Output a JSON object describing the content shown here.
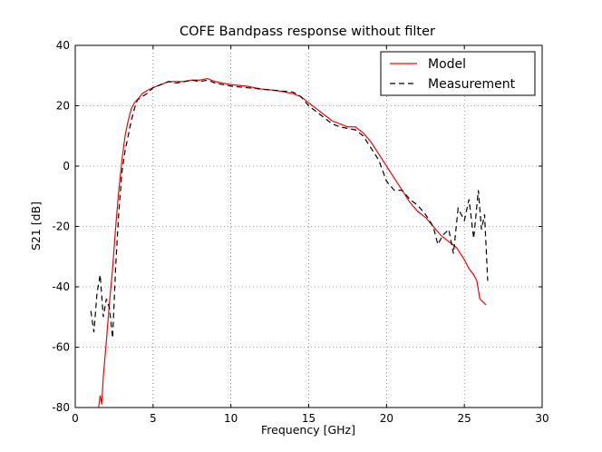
{
  "chart_data": {
    "type": "line",
    "title": "COFE Bandpass response without filter",
    "xlabel": "Frequency [GHz]",
    "ylabel": "S21 [dB]",
    "xlim": [
      0,
      30
    ],
    "ylim": [
      -80,
      40
    ],
    "xticks": [
      0,
      5,
      10,
      15,
      20,
      25,
      30
    ],
    "yticks": [
      -80,
      -60,
      -40,
      -20,
      0,
      20,
      40
    ],
    "grid": true,
    "legend_position": "top-right",
    "series": [
      {
        "name": "Model",
        "color": "#ff0000",
        "style": "solid",
        "x": [
          1.5,
          1.6,
          1.7,
          1.8,
          1.9,
          2.0,
          2.2,
          2.4,
          2.6,
          2.8,
          3.0,
          3.2,
          3.4,
          3.6,
          3.8,
          4.0,
          4.3,
          4.6,
          5.0,
          5.5,
          6.0,
          6.5,
          7.0,
          7.5,
          8.0,
          8.5,
          9.0,
          9.5,
          10.0,
          11.0,
          12.0,
          13.0,
          14.0,
          14.5,
          15.0,
          15.5,
          16.0,
          16.5,
          17.0,
          17.5,
          18.0,
          18.5,
          19.0,
          19.5,
          20.0,
          20.5,
          21.0,
          21.5,
          22.0,
          22.5,
          23.0,
          23.5,
          24.0,
          24.5,
          25.0,
          25.3,
          25.6,
          25.8,
          26.0,
          26.2,
          26.4
        ],
        "y": [
          -80,
          -76,
          -79,
          -70,
          -64,
          -58,
          -45,
          -34,
          -20,
          -8,
          2,
          10,
          15,
          19,
          21,
          22,
          24,
          25,
          26,
          27,
          28,
          28,
          28,
          28.5,
          28.5,
          29,
          28,
          27.5,
          27,
          26.5,
          25.5,
          25,
          24,
          23,
          21,
          19,
          17,
          15,
          14,
          13,
          13,
          11,
          8,
          4,
          0,
          -4,
          -8,
          -12,
          -15,
          -17,
          -20,
          -23,
          -25,
          -27,
          -31,
          -34,
          -36,
          -38,
          -44,
          -45,
          -46
        ]
      },
      {
        "name": "Measurement",
        "color": "#000000",
        "style": "dashed",
        "x": [
          1.0,
          1.2,
          1.4,
          1.6,
          1.8,
          2.0,
          2.2,
          2.4,
          2.6,
          2.8,
          3.0,
          3.2,
          3.4,
          3.6,
          3.8,
          4.0,
          4.3,
          4.6,
          5.0,
          5.5,
          6.0,
          6.5,
          7.0,
          7.5,
          8.0,
          8.5,
          9.0,
          9.5,
          10.0,
          11.0,
          12.0,
          13.0,
          14.0,
          14.5,
          15.0,
          15.5,
          16.0,
          16.5,
          17.0,
          17.5,
          18.0,
          18.5,
          19.0,
          19.5,
          20.0,
          20.5,
          21.0,
          21.5,
          22.0,
          22.5,
          23.0,
          23.3,
          23.6,
          24.0,
          24.3,
          24.6,
          25.0,
          25.3,
          25.6,
          25.9,
          26.1,
          26.3,
          26.5
        ],
        "y": [
          -48,
          -55,
          -42,
          -36,
          -50,
          -44,
          -47,
          -57,
          -33,
          -15,
          -2,
          5,
          10,
          15,
          19,
          22,
          23,
          24,
          26,
          27,
          28,
          27.5,
          28,
          28.5,
          28,
          28.5,
          27.5,
          27,
          26.5,
          26,
          25.5,
          25,
          24.5,
          23,
          20,
          18,
          16,
          14,
          13,
          12.5,
          12,
          10,
          6,
          2,
          -5,
          -8,
          -8,
          -11,
          -13,
          -16,
          -20,
          -26,
          -23,
          -21,
          -29,
          -14,
          -18,
          -11,
          -24,
          -8,
          -21,
          -16,
          -38
        ]
      }
    ]
  }
}
